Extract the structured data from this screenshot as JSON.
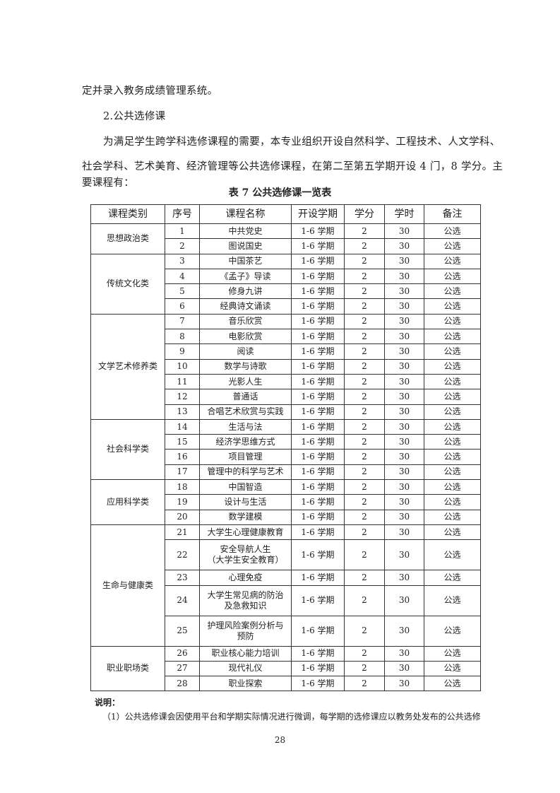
{
  "paragraphs": {
    "p1": "定并录入教务成绩管理系统。",
    "heading": "2.公共选修课",
    "p2_line1": "为满足学生跨学科选修课程的需要，本专业组织开设自然科学、工程技术、人文学科、",
    "p2_line2": "社会学科、艺术美育、经济管理等公共选修课程，在第二至第五学期开设 4 门，8 学分。主",
    "p2_line3": "要课程有："
  },
  "table": {
    "caption": "表 7   公共选修课一览表",
    "headers": [
      "课程类别",
      "序号",
      "课程名称",
      "开设学期",
      "学分",
      "学时",
      "备注"
    ],
    "groups": [
      {
        "category": "思想政治类",
        "rows": [
          {
            "no": "1",
            "name": [
              "中共党史"
            ],
            "term": "1-6 学期",
            "credit": "2",
            "hours": "30",
            "note": "公选"
          },
          {
            "no": "2",
            "name": [
              "图说国史"
            ],
            "term": "1-6 学期",
            "credit": "2",
            "hours": "30",
            "note": "公选"
          }
        ]
      },
      {
        "category": "传统文化类",
        "rows": [
          {
            "no": "3",
            "name": [
              "中国茶艺"
            ],
            "term": "1-6 学期",
            "credit": "2",
            "hours": "30",
            "note": "公选"
          },
          {
            "no": "4",
            "name": [
              "《孟子》导读"
            ],
            "term": "1-6 学期",
            "credit": "2",
            "hours": "30",
            "note": "公选"
          },
          {
            "no": "5",
            "name": [
              "修身九讲"
            ],
            "term": "1-6 学期",
            "credit": "2",
            "hours": "30",
            "note": "公选"
          },
          {
            "no": "6",
            "name": [
              "经典诗文诵读"
            ],
            "term": "1-6 学期",
            "credit": "2",
            "hours": "30",
            "note": "公选"
          }
        ]
      },
      {
        "category": "文学艺术修养类",
        "rows": [
          {
            "no": "7",
            "name": [
              "音乐欣赏"
            ],
            "term": "1-6 学期",
            "credit": "2",
            "hours": "30",
            "note": "公选"
          },
          {
            "no": "8",
            "name": [
              "电影欣赏"
            ],
            "term": "1-6 学期",
            "credit": "2",
            "hours": "30",
            "note": "公选"
          },
          {
            "no": "9",
            "name": [
              "阅读"
            ],
            "term": "1-6 学期",
            "credit": "2",
            "hours": "30",
            "note": "公选"
          },
          {
            "no": "10",
            "name": [
              "数学与诗歌"
            ],
            "term": "1-6 学期",
            "credit": "2",
            "hours": "30",
            "note": "公选"
          },
          {
            "no": "11",
            "name": [
              "光影人生"
            ],
            "term": "1-6 学期",
            "credit": "2",
            "hours": "30",
            "note": "公选"
          },
          {
            "no": "12",
            "name": [
              "普通话"
            ],
            "term": "1-6 学期",
            "credit": "2",
            "hours": "30",
            "note": "公选"
          },
          {
            "no": "13",
            "name": [
              "合唱艺术欣赏与实践"
            ],
            "term": "1-6 学期",
            "credit": "2",
            "hours": "30",
            "note": "公选"
          }
        ]
      },
      {
        "category": "社会科学类",
        "rows": [
          {
            "no": "14",
            "name": [
              "生活与法"
            ],
            "term": "1-6 学期",
            "credit": "2",
            "hours": "30",
            "note": "公选"
          },
          {
            "no": "15",
            "name": [
              "经济学思维方式"
            ],
            "term": "1-6 学期",
            "credit": "2",
            "hours": "30",
            "note": "公选"
          },
          {
            "no": "16",
            "name": [
              "项目管理"
            ],
            "term": "1-6 学期",
            "credit": "2",
            "hours": "30",
            "note": "公选"
          },
          {
            "no": "17",
            "name": [
              "管理中的科学与艺术"
            ],
            "term": "1-6 学期",
            "credit": "2",
            "hours": "30",
            "note": "公选"
          }
        ]
      },
      {
        "category": "应用科学类",
        "rows": [
          {
            "no": "18",
            "name": [
              "中国智造"
            ],
            "term": "1-6 学期",
            "credit": "2",
            "hours": "30",
            "note": "公选"
          },
          {
            "no": "19",
            "name": [
              "设计与生活"
            ],
            "term": "1-6 学期",
            "credit": "2",
            "hours": "30",
            "note": "公选"
          },
          {
            "no": "20",
            "name": [
              "数学建模"
            ],
            "term": "1-6 学期",
            "credit": "2",
            "hours": "30",
            "note": "公选"
          }
        ]
      },
      {
        "category": "生命与健康类",
        "rows": [
          {
            "no": "21",
            "name": [
              "大学生心理健康教育"
            ],
            "term": "1-6 学期",
            "credit": "2",
            "hours": "30",
            "note": "公选"
          },
          {
            "no": "22",
            "name": [
              "安全导航人生",
              "（大学生安全教育）"
            ],
            "term": "1-6 学期",
            "credit": "2",
            "hours": "30",
            "note": "公选"
          },
          {
            "no": "23",
            "name": [
              "心理免疫"
            ],
            "term": "1-6 学期",
            "credit": "2",
            "hours": "30",
            "note": "公选"
          },
          {
            "no": "24",
            "name": [
              "大学生常见病的防治",
              "及急救知识"
            ],
            "term": "1-6 学期",
            "credit": "2",
            "hours": "30",
            "note": "公选"
          },
          {
            "no": "25",
            "name": [
              "护理风险案例分析与",
              "预防"
            ],
            "term": "1-6 学期",
            "credit": "2",
            "hours": "30",
            "note": "公选"
          }
        ]
      },
      {
        "category": "职业职场类",
        "rows": [
          {
            "no": "26",
            "name": [
              "职业核心能力培训"
            ],
            "term": "1-6 学期",
            "credit": "2",
            "hours": "30",
            "note": "公选"
          },
          {
            "no": "27",
            "name": [
              "现代礼仪"
            ],
            "term": "1-6 学期",
            "credit": "2",
            "hours": "30",
            "note": "公选"
          },
          {
            "no": "28",
            "name": [
              "职业探索"
            ],
            "term": "1-6 学期",
            "credit": "2",
            "hours": "30",
            "note": "公选"
          }
        ]
      }
    ]
  },
  "notes": {
    "label": "说明：",
    "item1": "（1）公共选修课会因使用平台和学期实际情况进行微调，每学期的选修课应以教务处发布的公共选修"
  },
  "page_number": "28"
}
